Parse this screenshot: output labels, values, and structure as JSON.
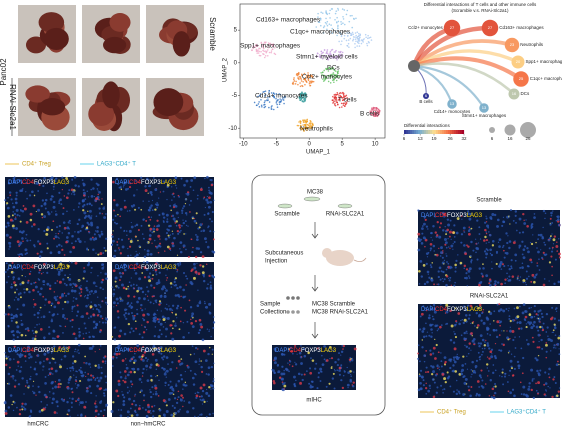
{
  "panel_a": {
    "cohort": "Panc02",
    "groups": [
      "Scramble",
      "RNAi-Slc2a1"
    ]
  },
  "umap": {
    "xlabel": "UMAP_1",
    "ylabel": "UMAP_2",
    "xlim": [
      -10.5,
      11.5
    ],
    "ylim": [
      -11.5,
      9
    ],
    "xticks": [
      -10,
      -5,
      0,
      5,
      10
    ],
    "yticks": [
      -10,
      -5,
      0,
      5
    ],
    "clusters": [
      "Cd163+ macrophages",
      "C1qc+ macrophages",
      "Spp1+ macrophages",
      "Stmn1+ myeloid cells",
      "DCs",
      "Ccl2+ monocytes",
      "Cd14+ monocytes",
      "T cells",
      "Neutrophils",
      "B cells"
    ]
  },
  "network": {
    "title": "Differential interactions of T cells and other immune cells",
    "subtitle": "(Scramble v.s. RNAi-Slc2a1)",
    "nodes": [
      {
        "label": "Ccl2+ monocytes",
        "count": 27
      },
      {
        "label": "Cd163+ macrophages",
        "count": 27
      },
      {
        "label": "Neutrophils",
        "count": 23
      },
      {
        "label": "Spp1+ macrophages",
        "count": 20
      },
      {
        "label": "C1qc+ macrophages",
        "count": 25
      },
      {
        "label": "DCs",
        "count": 16
      },
      {
        "label": "Stmn1+ macrophages",
        "count": 13
      },
      {
        "label": "Cd14+ monocytes",
        "count": 13
      },
      {
        "label": "B cells",
        "count": 6
      }
    ],
    "color_title": "Differential interactions",
    "color_ticks": [
      6,
      13,
      19,
      26,
      32
    ],
    "size_ticks": [
      6,
      16,
      26
    ]
  },
  "if_panel": {
    "legend": [
      "CD4⁺ Treg",
      "LAG3⁺CD4⁺ T"
    ],
    "stain": [
      "DAPI",
      "CD4",
      "FOXP3",
      "LAG3"
    ],
    "groups": [
      "hmCRC",
      "non−hmCRC"
    ]
  },
  "workflow": {
    "cell_line": "MC38",
    "arms": [
      "Scramble",
      "RNAi-SLC2A1"
    ],
    "injection": [
      "Subcutaneous",
      "Injection"
    ],
    "collection": [
      "Sample",
      "Collection"
    ],
    "samples": [
      "MC38 Scramble",
      "MC38 RNAi-SLC2A1"
    ],
    "readout": "mIHC"
  },
  "mihc": {
    "groups": [
      "Scramble",
      "RNAi-SLC2A1"
    ],
    "legend": [
      "CD4⁺ Treg",
      "LAG3⁺CD4⁺ T"
    ]
  }
}
